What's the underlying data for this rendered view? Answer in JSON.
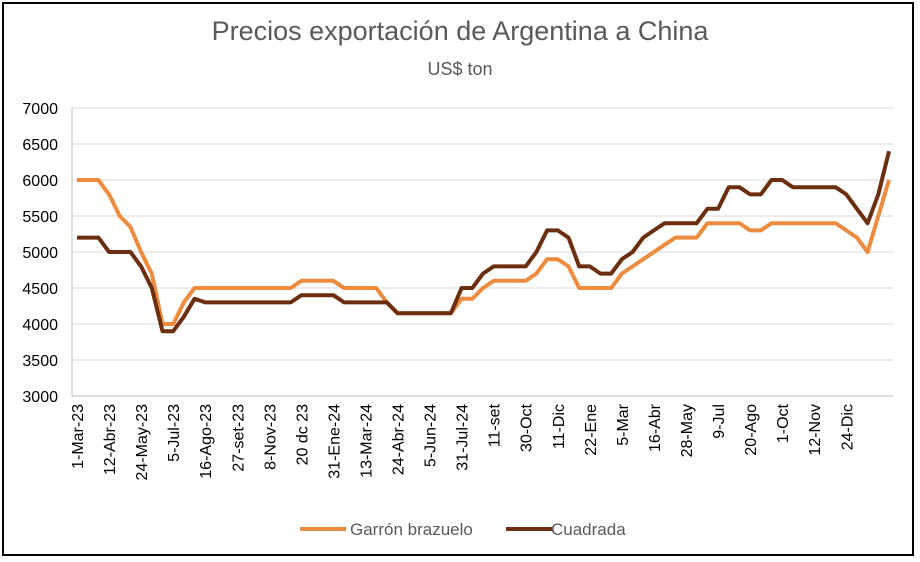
{
  "colors": {
    "series1": "#ED8B3F",
    "series2": "#6B2E0E",
    "grid": "#D9D9D9",
    "axis": "#BFBFBF"
  },
  "chart_data": {
    "type": "line",
    "title": "Precios exportación  de Argentina a China",
    "subtitle": "US$ ton",
    "ylim": [
      3000,
      7000
    ],
    "yticks": [
      3000,
      3500,
      4000,
      4500,
      5000,
      5500,
      6000,
      6500,
      7000
    ],
    "grid": true,
    "legend": "bottom",
    "xticklabels": [
      "1-Mar-23",
      "12-Abr-23",
      "24-May-23",
      "5-Jul-23",
      "16-Ago-23",
      "27-set-23",
      "8-Nov-23",
      "20 dc 23",
      "31-Ene-24",
      "13-Mar-24",
      "24-Abr-24",
      "5-Jun-24",
      "31-Jul-24",
      "11-set",
      "30-Oct",
      "11-Dic",
      "22-Ene",
      "5-Mar",
      "16-Abr",
      "28-May",
      "9-Jul",
      "20-Ago",
      "1-Oct",
      "12-Nov",
      "24-Dic"
    ],
    "series": [
      {
        "name": "Garrón brazuelo",
        "values": [
          6000,
          6000,
          6000,
          5800,
          5500,
          5350,
          5000,
          4700,
          4000,
          4000,
          4300,
          4500,
          4500,
          4500,
          4500,
          4500,
          4500,
          4500,
          4500,
          4500,
          4500,
          4600,
          4600,
          4600,
          4600,
          4500,
          4500,
          4500,
          4500,
          4300,
          4150,
          4150,
          4150,
          4150,
          4150,
          4150,
          4350,
          4350,
          4500,
          4600,
          4600,
          4600,
          4600,
          4700,
          4900,
          4900,
          4800,
          4500,
          4500,
          4500,
          4500,
          4700,
          4800,
          4900,
          5000,
          5100,
          5200,
          5200,
          5200,
          5400,
          5400,
          5400,
          5400,
          5300,
          5300,
          5400,
          5400,
          5400,
          5400,
          5400,
          5400,
          5400,
          5300,
          5200,
          5000,
          5500,
          6000
        ]
      },
      {
        "name": "Cuadrada",
        "values": [
          5200,
          5200,
          5200,
          5000,
          5000,
          5000,
          4800,
          4500,
          3900,
          3900,
          4100,
          4350,
          4300,
          4300,
          4300,
          4300,
          4300,
          4300,
          4300,
          4300,
          4300,
          4400,
          4400,
          4400,
          4400,
          4300,
          4300,
          4300,
          4300,
          4300,
          4150,
          4150,
          4150,
          4150,
          4150,
          4150,
          4500,
          4500,
          4700,
          4800,
          4800,
          4800,
          4800,
          5000,
          5300,
          5300,
          5200,
          4800,
          4800,
          4700,
          4700,
          4900,
          5000,
          5200,
          5300,
          5400,
          5400,
          5400,
          5400,
          5600,
          5600,
          5900,
          5900,
          5800,
          5800,
          6000,
          6000,
          5900,
          5900,
          5900,
          5900,
          5900,
          5800,
          5600,
          5400,
          5800,
          6400
        ]
      }
    ]
  }
}
